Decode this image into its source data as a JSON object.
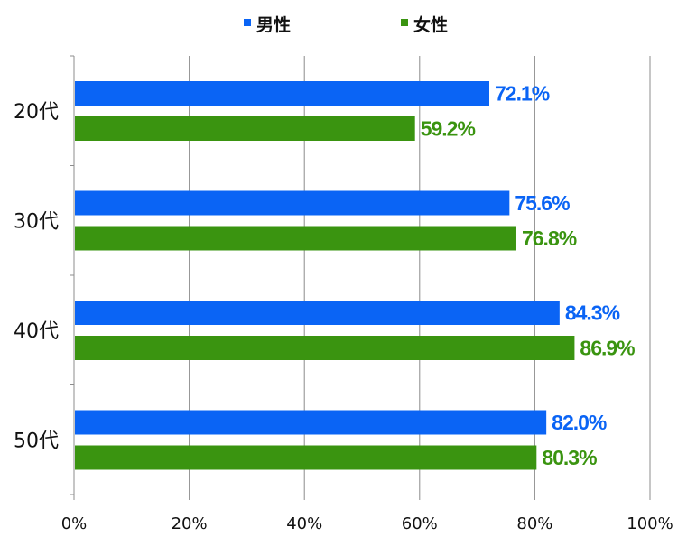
{
  "chart_data": {
    "type": "bar",
    "orientation": "horizontal",
    "categories": [
      "20代",
      "30代",
      "40代",
      "50代"
    ],
    "series": [
      {
        "name": "男性",
        "color": "#0a64f5",
        "values": [
          72.1,
          75.6,
          84.3,
          82.0
        ],
        "labels": [
          "72.1%",
          "75.6%",
          "84.3%",
          "82.0%"
        ]
      },
      {
        "name": "女性",
        "color": "#3a9410",
        "values": [
          59.2,
          76.8,
          86.9,
          80.3
        ],
        "labels": [
          "59.2%",
          "76.8%",
          "86.9%",
          "80.3%"
        ]
      }
    ],
    "xlim": [
      0,
      100
    ],
    "xticks": [
      "0%",
      "20%",
      "40%",
      "60%",
      "80%",
      "100%"
    ],
    "grid": true,
    "legend_position": "top"
  }
}
